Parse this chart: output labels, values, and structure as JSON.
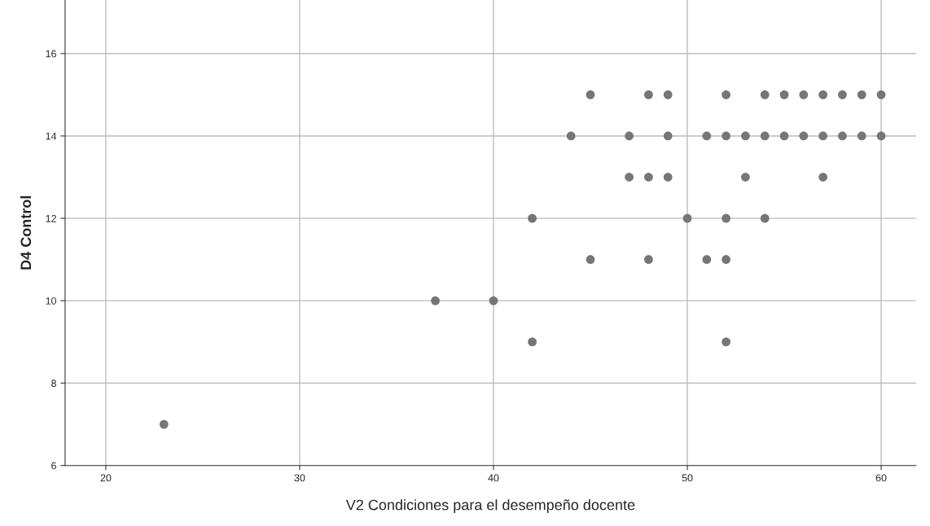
{
  "chart_data": {
    "type": "scatter",
    "xlabel": "V2 Condiciones para el desempeño docente",
    "ylabel": "D4 Control",
    "x": [
      23,
      37,
      40,
      42,
      42,
      44,
      45,
      45,
      47,
      47,
      48,
      48,
      48,
      49,
      49,
      49,
      50,
      51,
      51,
      52,
      52,
      52,
      52,
      52,
      53,
      53,
      54,
      54,
      54,
      55,
      55,
      56,
      56,
      57,
      57,
      57,
      58,
      58,
      59,
      59,
      60,
      60
    ],
    "values": [
      7,
      10,
      10,
      12,
      9,
      14,
      15,
      11,
      14,
      13,
      15,
      13,
      11,
      15,
      14,
      13,
      12,
      14,
      11,
      15,
      14,
      12,
      11,
      9,
      14,
      13,
      15,
      14,
      12,
      15,
      14,
      15,
      14,
      15,
      14,
      13,
      15,
      14,
      15,
      14,
      15,
      14
    ],
    "color": "#767676",
    "marker": "circle",
    "xlim": [
      17.9,
      61.8
    ],
    "ylim": [
      6,
      17.3
    ],
    "xticks": [
      20,
      30,
      40,
      50,
      60
    ],
    "yticks": [
      6,
      8,
      10,
      12,
      14,
      16
    ],
    "grid": true
  }
}
